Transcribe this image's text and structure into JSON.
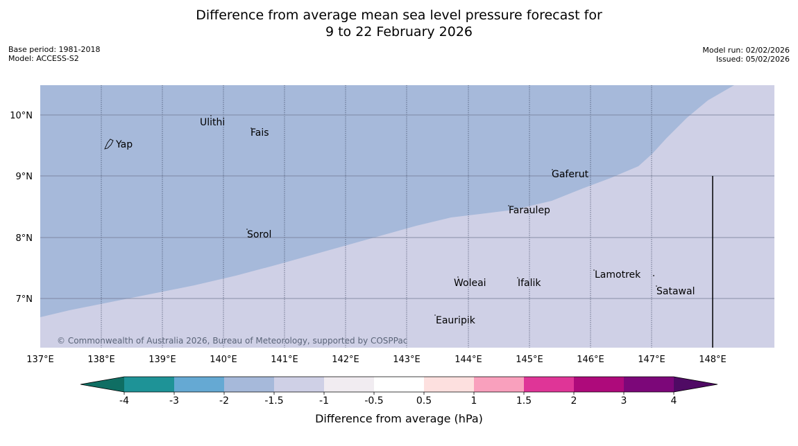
{
  "header": {
    "title_line1": "Difference from average mean sea level pressure forecast for",
    "title_line2": "9 to 22 February 2026",
    "base_period": "Base period: 1981-2018",
    "model": "Model: ACCESS-S2",
    "model_run": "Model run: 02/02/2026",
    "issued": "Issued: 05/02/2026"
  },
  "map": {
    "lon_ticks": [
      "137°E",
      "138°E",
      "139°E",
      "140°E",
      "141°E",
      "142°E",
      "143°E",
      "144°E",
      "145°E",
      "146°E",
      "147°E",
      "148°E"
    ],
    "lat_ticks": [
      "10°N",
      "9°N",
      "8°N",
      "7°N"
    ],
    "places": [
      {
        "name": "Yap"
      },
      {
        "name": "Ulithi"
      },
      {
        "name": "Fais"
      },
      {
        "name": "Gaferut"
      },
      {
        "name": "Faraulep"
      },
      {
        "name": "Sorol"
      },
      {
        "name": "Woleai"
      },
      {
        "name": "Ifalik"
      },
      {
        "name": "Lamotrek"
      },
      {
        "name": "Satawal"
      },
      {
        "name": "Eauripik"
      }
    ],
    "copyright": "© Commonwealth of Australia 2026, Bureau of Meteorology, supported by COSPPac",
    "colors": {
      "band_neg2_to_neg1_5": "#a6b9da",
      "band_neg1_5_to_neg1": "#cfd0e6"
    }
  },
  "colorbar": {
    "title": "Difference from average (hPa)",
    "ticks": [
      "-4",
      "-3",
      "-2",
      "-1.5",
      "-1",
      "-0.5",
      "0.5",
      "1",
      "1.5",
      "2",
      "3",
      "4"
    ],
    "colors": [
      "#0f6e63",
      "#1e9397",
      "#65a9d3",
      "#a6b9da",
      "#cfd0e6",
      "#f1ecf1",
      "#ffffff",
      "#fde0df",
      "#f9a0bd",
      "#df3597",
      "#ae0a7b",
      "#7c0779",
      "#4f0a64"
    ]
  }
}
